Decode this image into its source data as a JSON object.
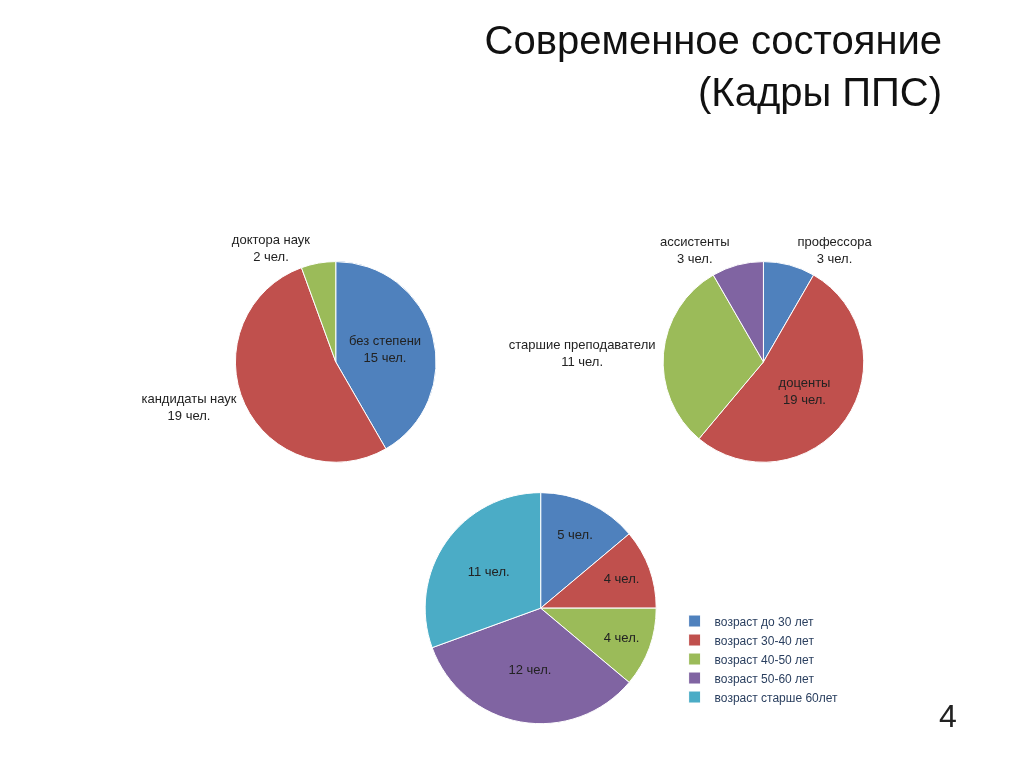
{
  "chart_data": [
    {
      "type": "other",
      "title": "Современное состояние\n(Кадры ППС)",
      "annotations": [
        "4"
      ]
    },
    {
      "type": "pie",
      "categories": [
        "без степени",
        "кандидаты наук",
        "доктора наук"
      ],
      "values": [
        15,
        19,
        2
      ],
      "value_labels": [
        "15 чел.",
        "19 чел.",
        "2 чел."
      ],
      "colors": [
        "#4f81bd",
        "#c0504d",
        "#9bbb59"
      ],
      "legend": false
    },
    {
      "type": "pie",
      "categories": [
        "профессора",
        "доценты",
        "старшие преподаватели",
        "ассистенты"
      ],
      "values": [
        3,
        19,
        11,
        3
      ],
      "value_labels": [
        "3 чел.",
        "19 чел.",
        "11 чел.",
        "3 чел."
      ],
      "colors": [
        "#4f81bd",
        "#c0504d",
        "#9bbb59",
        "#8064a2"
      ],
      "legend": false
    },
    {
      "type": "pie",
      "categories": [
        "возраст до 30 лет",
        "возраст 30-40 лет",
        "возраст 40-50 лет",
        "возраст 50-60 лет",
        "возраст старше 60лет"
      ],
      "values": [
        5,
        4,
        4,
        12,
        11
      ],
      "value_labels": [
        "5 чел.",
        "4 чел.",
        "4 чел.",
        "12 чел.",
        "11 чел."
      ],
      "colors": [
        "#4f81bd",
        "#c0504d",
        "#9bbb59",
        "#8064a2",
        "#4bacc6"
      ],
      "legend": "bottom right"
    }
  ]
}
